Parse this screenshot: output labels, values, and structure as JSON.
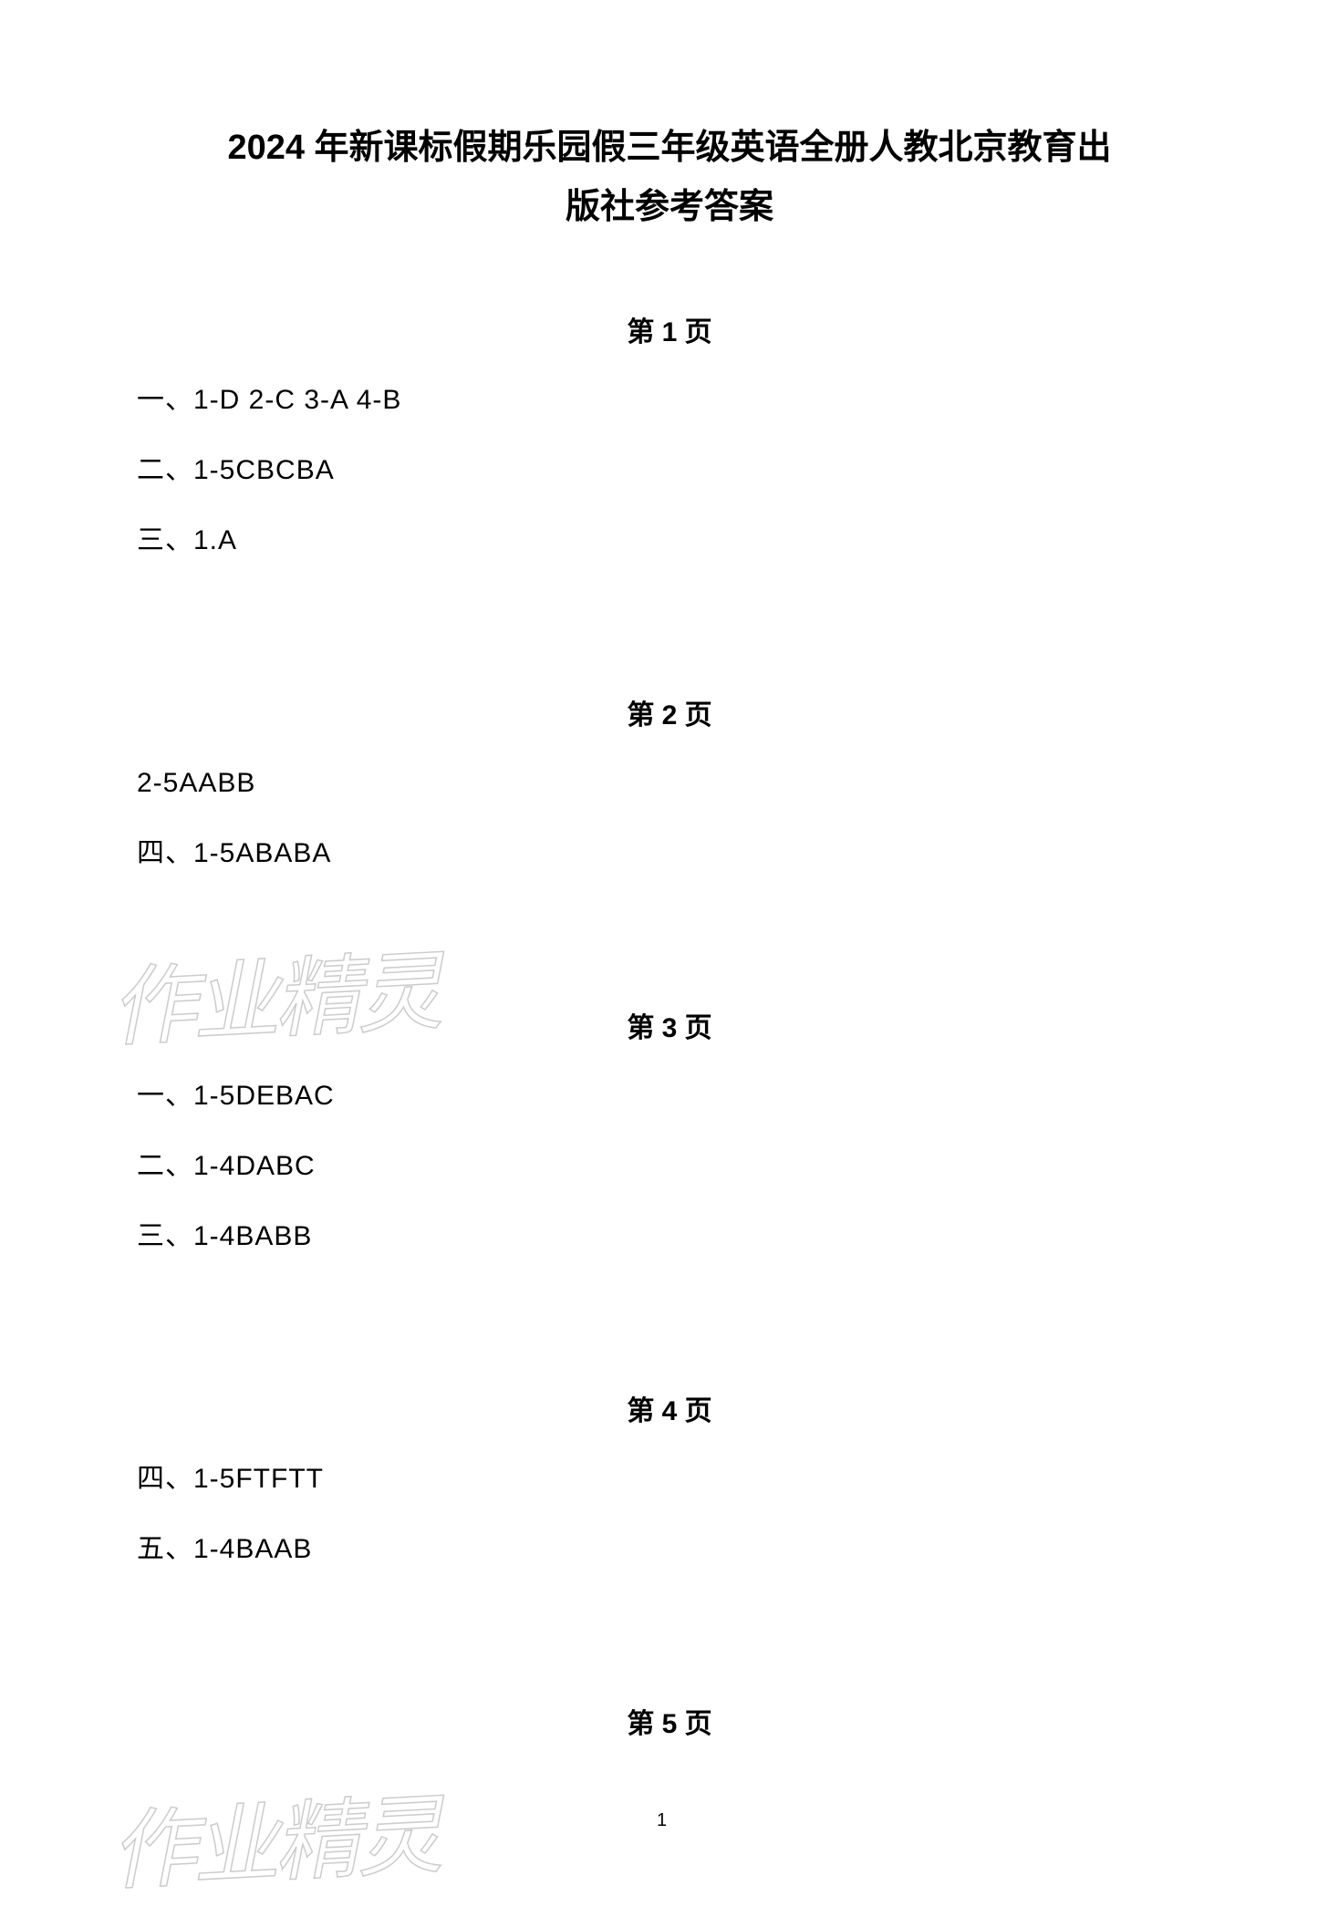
{
  "document": {
    "title_line1": "2024 年新课标假期乐园假三年级英语全册人教北京教育出",
    "title_line2": "版社参考答案",
    "page_number": "1",
    "watermark": "作业精灵",
    "sections": [
      {
        "heading": "第 1 页",
        "lines": [
          "一、1-D   2-C   3-A   4-B",
          "二、1-5CBCBA",
          "三、1.A"
        ]
      },
      {
        "heading": "第 2 页",
        "lines": [
          "2-5AABB",
          "四、1-5ABABA"
        ]
      },
      {
        "heading": "第 3 页",
        "lines": [
          "一、1-5DEBAC",
          "二、1-4DABC",
          "三、1-4BABB"
        ]
      },
      {
        "heading": "第 4 页",
        "lines": [
          "四、1-5FTFTT",
          "五、1-4BAAB"
        ]
      },
      {
        "heading": "第 5 页",
        "lines": []
      }
    ]
  }
}
